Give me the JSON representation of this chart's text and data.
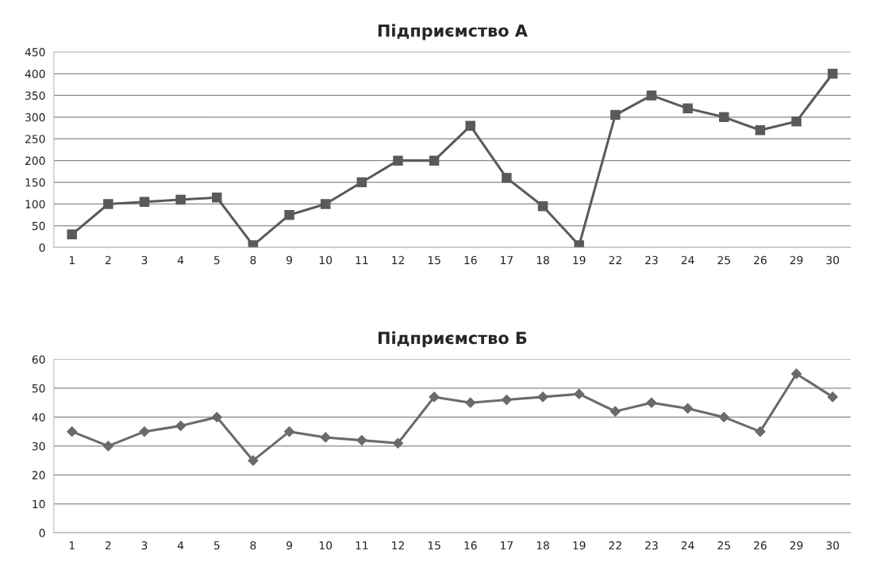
{
  "chart_data": [
    {
      "type": "line",
      "title": "Підприємство А",
      "categories": [
        "1",
        "2",
        "3",
        "4",
        "5",
        "8",
        "9",
        "10",
        "11",
        "12",
        "15",
        "16",
        "17",
        "18",
        "19",
        "22",
        "23",
        "24",
        "25",
        "26",
        "29",
        "30"
      ],
      "series": [
        {
          "color": "#5a5a5a",
          "values": [
            30,
            100,
            105,
            110,
            115,
            5,
            75,
            100,
            150,
            200,
            200,
            280,
            160,
            95,
            5,
            305,
            350,
            320,
            300,
            270,
            290,
            400
          ]
        }
      ],
      "ylim": [
        0,
        450
      ],
      "yticks": [
        0,
        50,
        100,
        150,
        200,
        250,
        300,
        350,
        400,
        450
      ],
      "grid": "y",
      "marker": "square",
      "line_style": "solid"
    },
    {
      "type": "line",
      "title": "Підприємство Б",
      "categories": [
        "1",
        "2",
        "3",
        "4",
        "5",
        "8",
        "9",
        "10",
        "11",
        "12",
        "15",
        "16",
        "17",
        "18",
        "19",
        "22",
        "23",
        "24",
        "25",
        "26",
        "29",
        "30"
      ],
      "series": [
        {
          "color": "#6a6a6a",
          "values": [
            35,
            30,
            35,
            37,
            40,
            25,
            35,
            33,
            32,
            31,
            47,
            45,
            46,
            47,
            48,
            42,
            45,
            43,
            40,
            35,
            55,
            47
          ]
        }
      ],
      "ylim": [
        0,
        60
      ],
      "yticks": [
        0,
        10,
        20,
        30,
        40,
        50,
        60
      ],
      "grid": "y",
      "marker": "diamond",
      "line_style": "solid"
    }
  ]
}
